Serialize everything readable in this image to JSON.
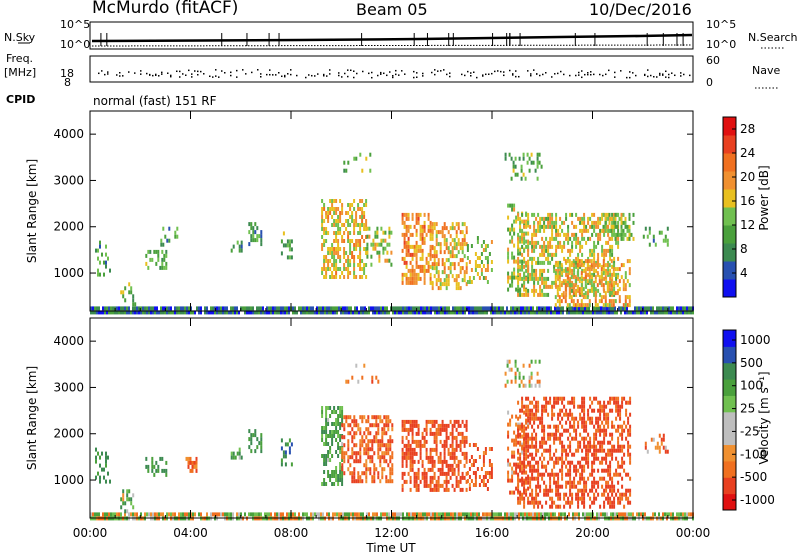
{
  "header": {
    "title": "McMurdo (fitACF)",
    "beam": "Beam 05",
    "date": "10/Dec/2016"
  },
  "summary_panels": {
    "sky_label": "N.Sky",
    "search_label": "N.Search",
    "sky_ticks": [
      "10^5",
      "10^0"
    ],
    "search_ticks": [
      "10^5",
      "10^0"
    ],
    "freq_label_1": "Freq.",
    "freq_label_2": "[MHz]",
    "freq_ticks": [
      "18",
      "8"
    ],
    "nave_label": "Nave",
    "nave_ticks": [
      "60",
      "0"
    ],
    "cpid_label": "CPID",
    "cpid_text": "normal (fast) 151 RF"
  },
  "colors": {
    "power_scale": [
      "#1010f0",
      "#2850b0",
      "#3c8a50",
      "#4aa03c",
      "#70c050",
      "#e8c020",
      "#f09030",
      "#f07020",
      "#e84020",
      "#e01010"
    ],
    "velocity_scale": [
      "#e01010",
      "#e84020",
      "#f07020",
      "#f09030",
      "#bebebe",
      "#bebebe",
      "#70c050",
      "#4aa03c",
      "#3c8a50",
      "#2850b0",
      "#1010f0"
    ]
  },
  "chart_data": [
    {
      "type": "heatmap",
      "name": "Power",
      "xlabel": "Time UT",
      "ylabel": "Slant Range [km]",
      "x_ticks": [
        "00:00",
        "04:00",
        "08:00",
        "12:00",
        "16:00",
        "20:00",
        "00:00"
      ],
      "y_ticks": [
        1000,
        2000,
        3000,
        4000
      ],
      "xlim": [
        0,
        24
      ],
      "ylim": [
        180,
        4500
      ],
      "colorbar": {
        "label": "Power [dB]",
        "ticks": [
          "28",
          "24",
          "20",
          "16",
          "12",
          "8",
          "4"
        ],
        "range": [
          0,
          30
        ]
      },
      "echo_regions": [
        {
          "t": [
            0.0,
            24.0
          ],
          "r": [
            180,
            280
          ],
          "value": 6,
          "density": 0.9
        },
        {
          "t": [
            0.2,
            0.8
          ],
          "r": [
            1000,
            1700
          ],
          "value": 9,
          "density": 0.3
        },
        {
          "t": [
            1.2,
            1.8
          ],
          "r": [
            300,
            800
          ],
          "value": 12,
          "density": 0.4
        },
        {
          "t": [
            2.2,
            3.0
          ],
          "r": [
            1150,
            1500
          ],
          "value": 12,
          "density": 0.5
        },
        {
          "t": [
            2.8,
            3.6
          ],
          "r": [
            1600,
            2000
          ],
          "value": 10,
          "density": 0.3
        },
        {
          "t": [
            5.6,
            6.0
          ],
          "r": [
            1500,
            1700
          ],
          "value": 9,
          "density": 0.5
        },
        {
          "t": [
            6.3,
            6.8
          ],
          "r": [
            1650,
            2100
          ],
          "value": 10,
          "density": 0.5
        },
        {
          "t": [
            7.6,
            8.0
          ],
          "r": [
            1300,
            1900
          ],
          "value": 11,
          "density": 0.4
        },
        {
          "t": [
            9.2,
            11.0
          ],
          "r": [
            900,
            2600
          ],
          "value": 17,
          "density": 0.55
        },
        {
          "t": [
            11.0,
            12.0
          ],
          "r": [
            1200,
            2000
          ],
          "value": 14,
          "density": 0.35
        },
        {
          "t": [
            12.4,
            13.6
          ],
          "r": [
            800,
            2300
          ],
          "value": 20,
          "density": 0.55
        },
        {
          "t": [
            13.6,
            15.0
          ],
          "r": [
            700,
            2100
          ],
          "value": 18,
          "density": 0.45
        },
        {
          "t": [
            15.0,
            16.0
          ],
          "r": [
            800,
            1800
          ],
          "value": 15,
          "density": 0.35
        },
        {
          "t": [
            16.6,
            17.4
          ],
          "r": [
            600,
            2500
          ],
          "value": 14,
          "density": 0.4
        },
        {
          "t": [
            17.0,
            21.0
          ],
          "r": [
            500,
            2300
          ],
          "value": 16,
          "density": 0.5
        },
        {
          "t": [
            20.4,
            21.6
          ],
          "r": [
            1700,
            2300
          ],
          "value": 14,
          "density": 0.5
        },
        {
          "t": [
            18.5,
            21.5
          ],
          "r": [
            300,
            1300
          ],
          "value": 18,
          "density": 0.5
        },
        {
          "t": [
            22.0,
            23.0
          ],
          "r": [
            1600,
            2000
          ],
          "value": 9,
          "density": 0.3
        },
        {
          "t": [
            10.0,
            11.5
          ],
          "r": [
            3000,
            3600
          ],
          "value": 12,
          "density": 0.15
        },
        {
          "t": [
            16.5,
            18.0
          ],
          "r": [
            3000,
            3600
          ],
          "value": 11,
          "density": 0.2
        }
      ]
    },
    {
      "type": "heatmap",
      "name": "Velocity",
      "xlabel": "Time UT",
      "ylabel": "Slant Range [km]",
      "x_ticks": [
        "00:00",
        "04:00",
        "08:00",
        "12:00",
        "16:00",
        "20:00",
        "00:00"
      ],
      "y_ticks": [
        1000,
        2000,
        3000,
        4000
      ],
      "xlim": [
        0,
        24
      ],
      "ylim": [
        180,
        4500
      ],
      "colorbar": {
        "label": "Velocity [m s⁻¹]",
        "ticks": [
          "1000",
          "500",
          "100",
          "25",
          "-25",
          "-100",
          "-500",
          "-1000"
        ]
      },
      "echo_regions": [
        {
          "t": [
            0.0,
            24.0
          ],
          "r": [
            180,
            300
          ],
          "value": 0,
          "density": 0.85
        },
        {
          "t": [
            0.2,
            0.8
          ],
          "r": [
            1000,
            1700
          ],
          "value": 300,
          "density": 0.3
        },
        {
          "t": [
            1.2,
            1.8
          ],
          "r": [
            300,
            800
          ],
          "value": 120,
          "density": 0.4
        },
        {
          "t": [
            2.2,
            3.0
          ],
          "r": [
            1150,
            1500
          ],
          "value": 300,
          "density": 0.5
        },
        {
          "t": [
            3.8,
            4.2
          ],
          "r": [
            1200,
            1500
          ],
          "value": -150,
          "density": 0.6
        },
        {
          "t": [
            5.6,
            6.0
          ],
          "r": [
            1500,
            1700
          ],
          "value": 200,
          "density": 0.5
        },
        {
          "t": [
            6.3,
            6.8
          ],
          "r": [
            1650,
            2100
          ],
          "value": 300,
          "density": 0.5
        },
        {
          "t": [
            7.6,
            8.0
          ],
          "r": [
            1300,
            1900
          ],
          "value": 400,
          "density": 0.4
        },
        {
          "t": [
            9.2,
            10.0
          ],
          "r": [
            900,
            2600
          ],
          "value": 200,
          "density": 0.5
        },
        {
          "t": [
            10.0,
            12.0
          ],
          "r": [
            1000,
            2400
          ],
          "value": -250,
          "density": 0.55
        },
        {
          "t": [
            12.4,
            15.0
          ],
          "r": [
            800,
            2300
          ],
          "value": -300,
          "density": 0.55
        },
        {
          "t": [
            15.0,
            16.0
          ],
          "r": [
            800,
            1800
          ],
          "value": -250,
          "density": 0.35
        },
        {
          "t": [
            16.6,
            17.4
          ],
          "r": [
            600,
            2500
          ],
          "value": -200,
          "density": 0.4
        },
        {
          "t": [
            17.0,
            21.5
          ],
          "r": [
            400,
            2800
          ],
          "value": -300,
          "density": 0.5
        },
        {
          "t": [
            22.0,
            23.0
          ],
          "r": [
            1600,
            2000
          ],
          "value": -200,
          "density": 0.3
        },
        {
          "t": [
            10.0,
            11.5
          ],
          "r": [
            3000,
            3600
          ],
          "value": -150,
          "density": 0.15
        },
        {
          "t": [
            16.5,
            18.0
          ],
          "r": [
            3000,
            3600
          ],
          "value": 0,
          "density": 0.2
        }
      ]
    }
  ]
}
